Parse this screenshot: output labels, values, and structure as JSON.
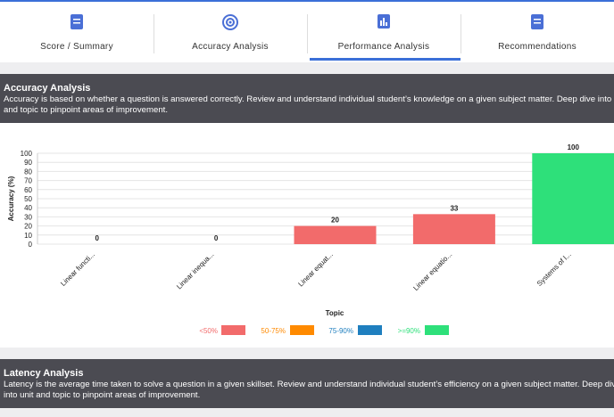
{
  "tabs": [
    {
      "label": "Score / Summary"
    },
    {
      "label": "Accuracy Analysis"
    },
    {
      "label": "Performance Analysis"
    },
    {
      "label": "Recommendations"
    }
  ],
  "sections": [
    {
      "title": "Accuracy Analysis",
      "description": "Accuracy is based on whether a question is answered correctly. Review and understand individual student’s knowledge on a given subject matter. Deep dive into unit and topic to pinpoint areas of improvement."
    },
    {
      "title": "Latency Analysis",
      "description": "Latency is the average time taken to solve a question in a given skillset. Review and understand individual student’s efficiency on a given subject matter. Deep dive into unit and topic to pinpoint areas of improvement."
    }
  ],
  "chart_data": {
    "type": "bar",
    "x_label": "Topic",
    "y_label": "Accuracy (%)",
    "categories": [
      "Linear functi...",
      "Linear inequa...",
      "Linear equat...",
      "Linear equatio...",
      "Systems of l..."
    ],
    "values": [
      0,
      0,
      20,
      33,
      100
    ],
    "colors": [
      "#f26b6b",
      "#f26b6b",
      "#f26b6b",
      "#f26b6b",
      "#2ee07a"
    ],
    "ylim": [
      0,
      100
    ],
    "yticks": [
      0,
      10,
      20,
      30,
      40,
      50,
      60,
      70,
      80,
      90,
      100
    ],
    "grid": true,
    "legend": [
      {
        "name": "<50%",
        "color": "#f26b6b"
      },
      {
        "name": "50-75%",
        "color": "#ff8a00"
      },
      {
        "name": "75-90%",
        "color": "#1f7fbf"
      },
      {
        "name": ">=90%",
        "color": "#2ee07a"
      }
    ]
  }
}
